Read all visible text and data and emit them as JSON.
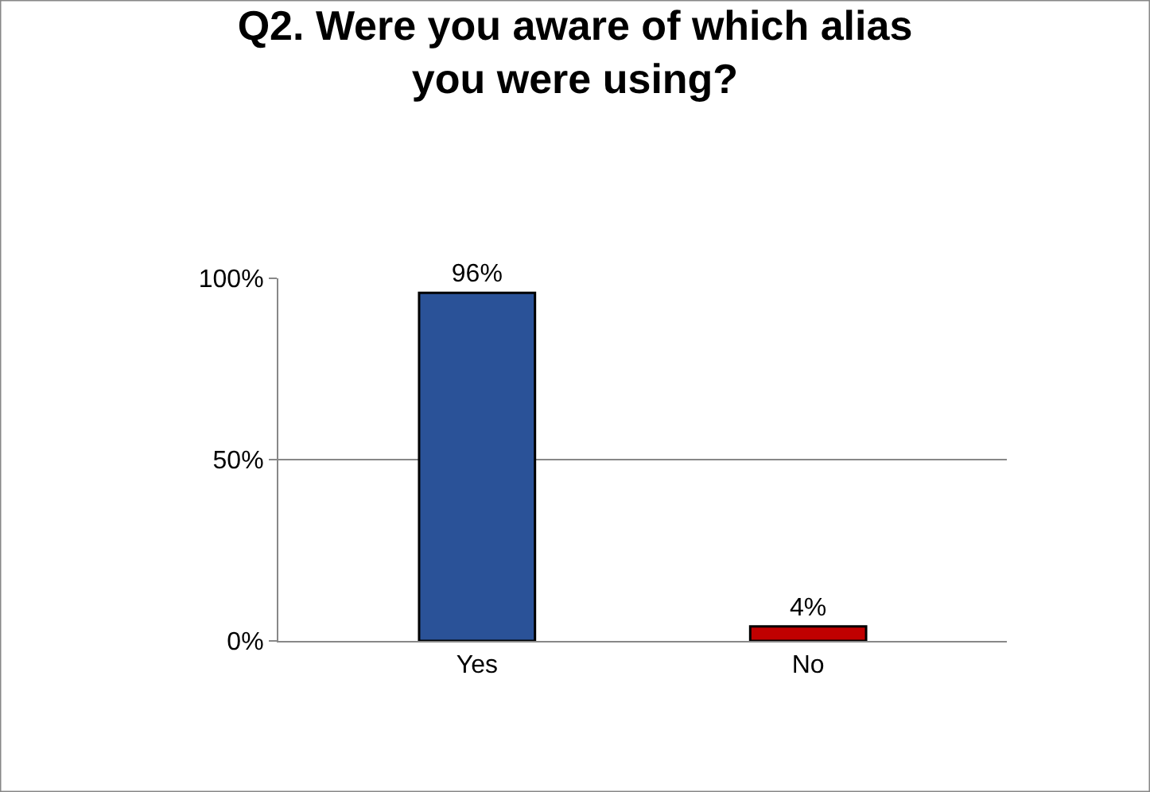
{
  "chart_data": {
    "type": "bar",
    "title": "Q2. Were you aware of which alias you were using?",
    "categories": [
      "Yes",
      "No"
    ],
    "values": [
      96,
      4
    ],
    "colors": [
      "#2a5298",
      "#c00000"
    ],
    "value_labels": [
      "96%",
      "4%"
    ],
    "ylim": [
      0,
      100
    ],
    "yticks": [
      {
        "value": 0,
        "label": "0%"
      },
      {
        "value": 50,
        "label": "50%"
      },
      {
        "value": 100,
        "label": "100%"
      }
    ],
    "grid": "y",
    "legend": false
  }
}
